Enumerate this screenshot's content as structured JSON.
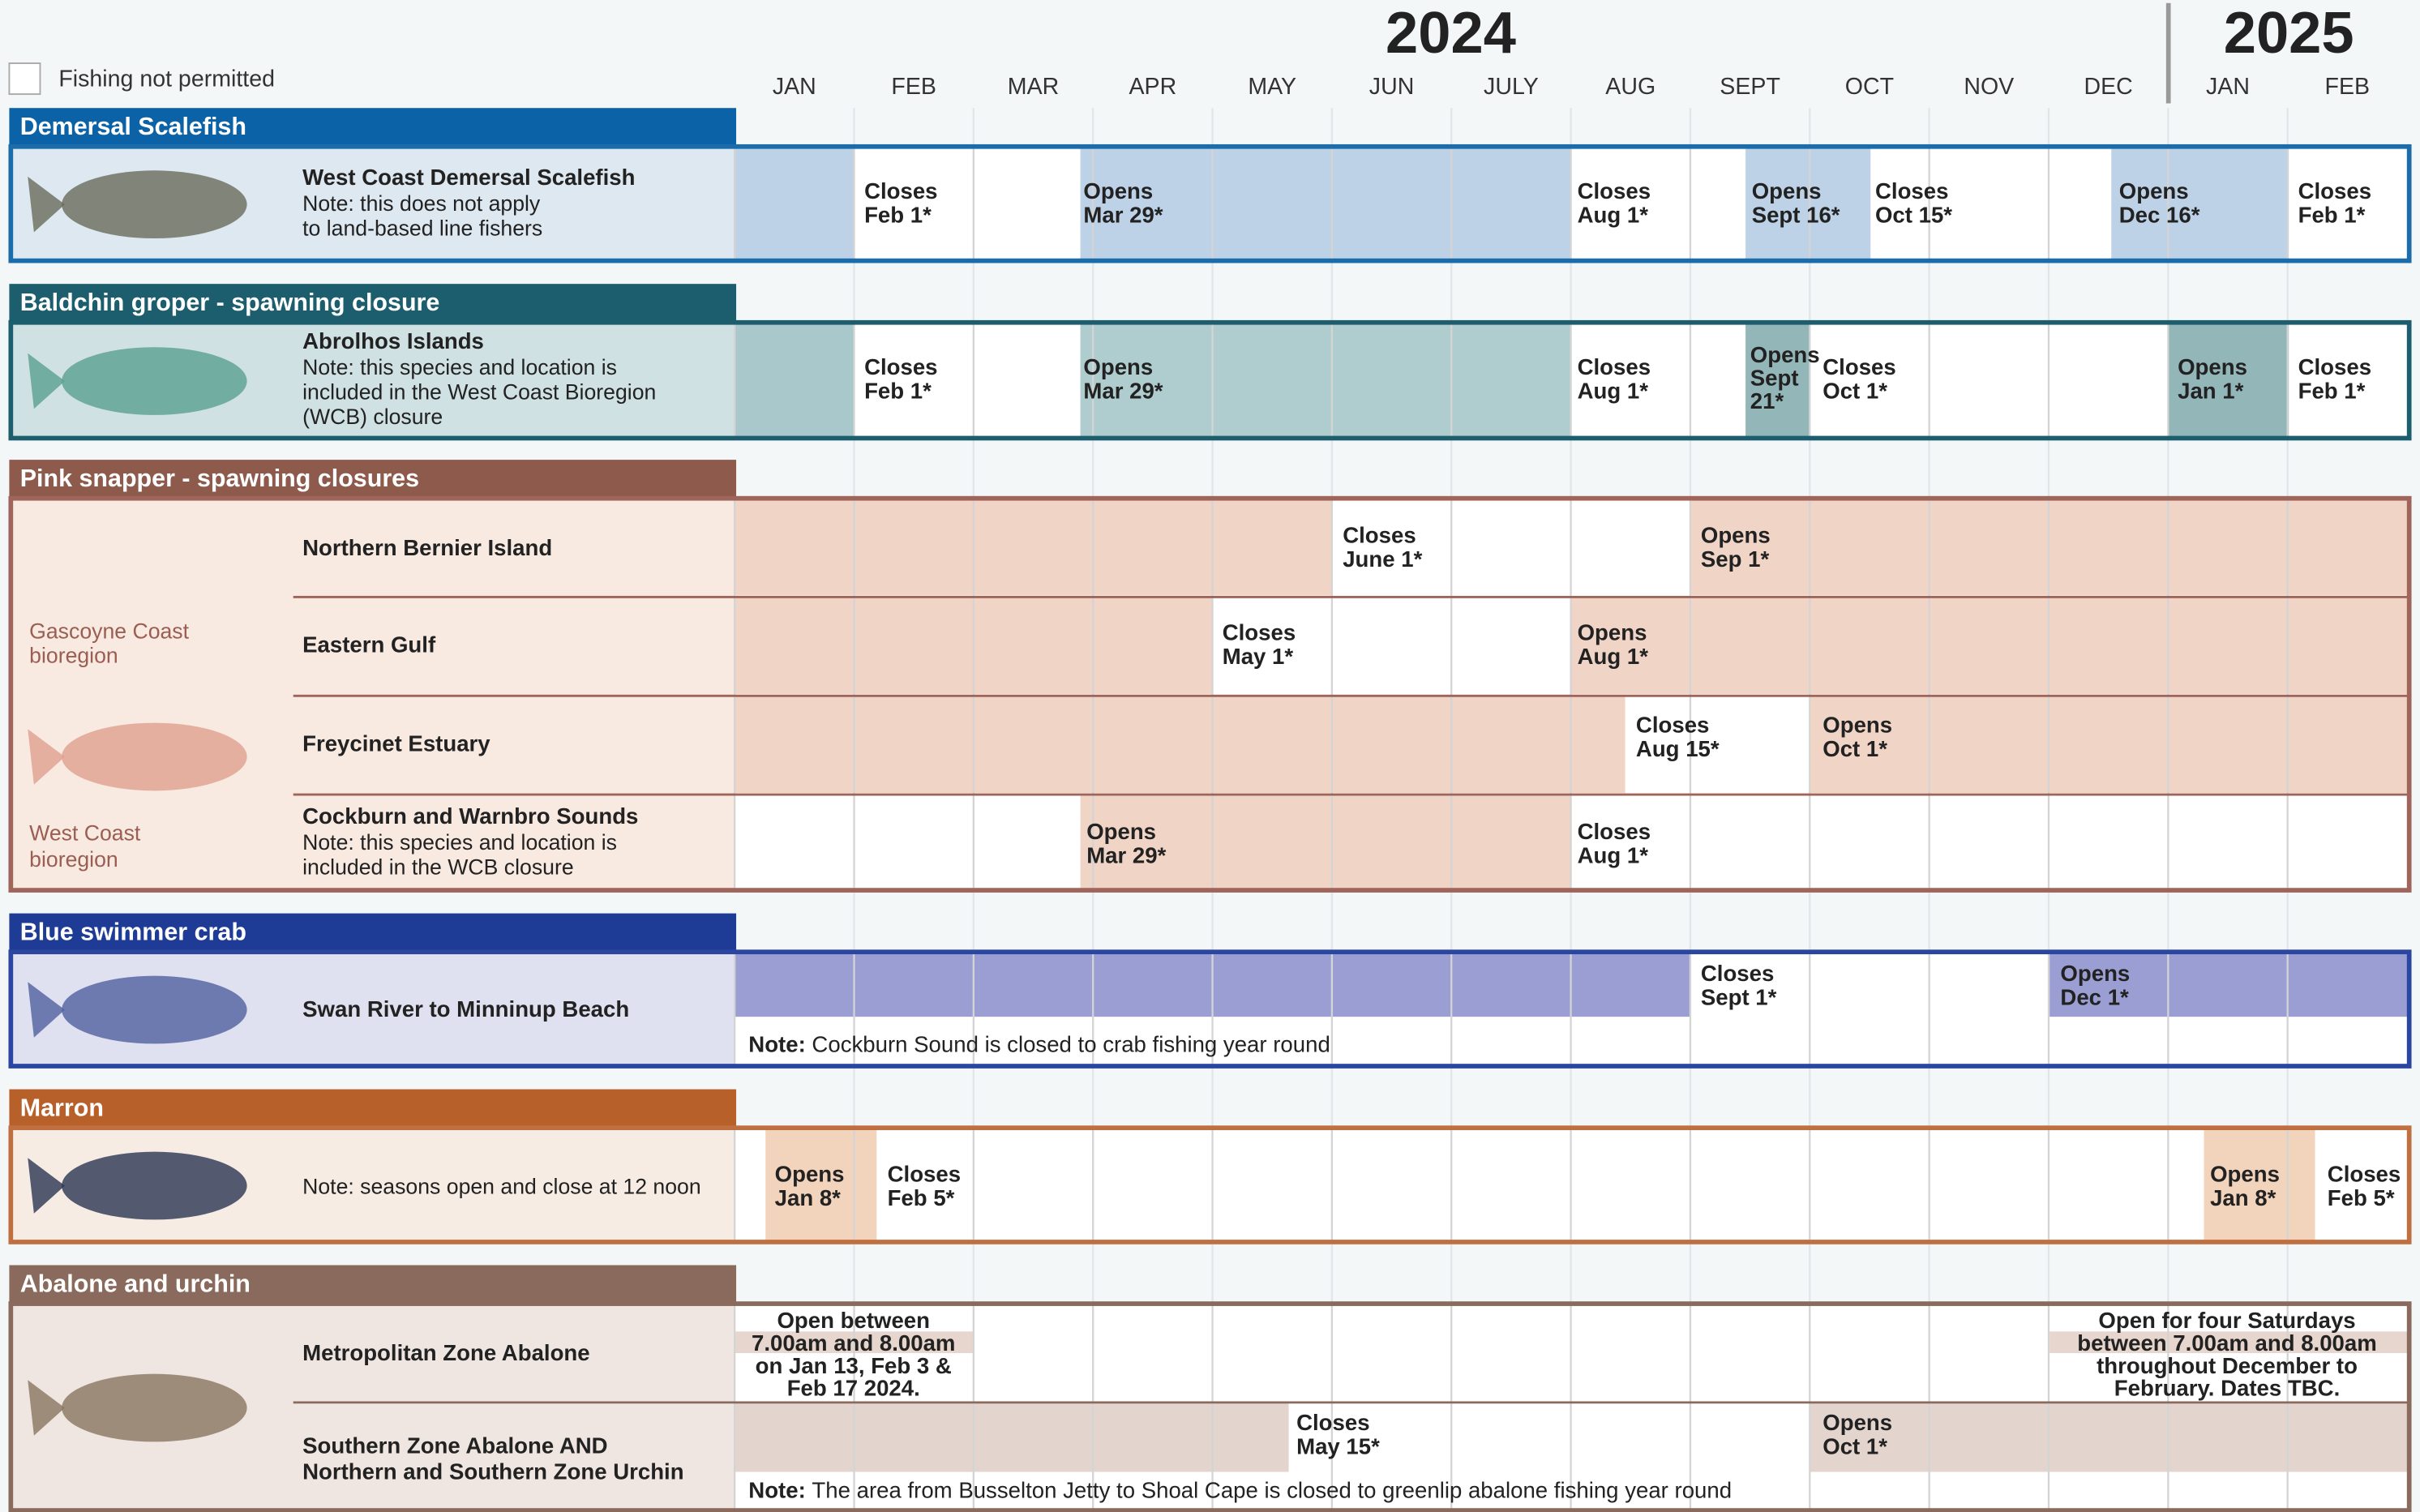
{
  "legend": "Fishing not permitted",
  "years": [
    "2024",
    "2025"
  ],
  "months": [
    "JAN",
    "FEB",
    "MAR",
    "APR",
    "MAY",
    "JUN",
    "JULY",
    "AUG",
    "SEPT",
    "OCT",
    "NOV",
    "DEC",
    "JAN",
    "FEB"
  ],
  "sections": [
    {
      "title": "Demersal Scalefish",
      "rows": [
        {
          "label": [
            "West Coast Demersal Scalefish"
          ],
          "note": [
            "Note: this does not apply",
            "to land-based line fishers"
          ],
          "events": [
            [
              "Closes",
              "Feb 1*"
            ],
            [
              "Opens",
              "Mar 29*"
            ],
            [
              "Closes",
              "Aug 1*"
            ],
            [
              "Opens",
              "Sept 16*"
            ],
            [
              "Closes",
              "Oct 15*"
            ],
            [
              "Opens",
              "Dec 16*"
            ],
            [
              "Closes",
              "Feb 1*"
            ]
          ]
        }
      ]
    },
    {
      "title": "Baldchin groper - spawning closure",
      "rows": [
        {
          "label": [
            "Abrolhos Islands"
          ],
          "note": [
            "Note: this species and location is",
            "included in the West Coast Bioregion",
            "(WCB) closure"
          ],
          "events": [
            [
              "Closes",
              "Feb 1*"
            ],
            [
              "Opens",
              "Mar 29*"
            ],
            [
              "Closes",
              "Aug 1*"
            ],
            [
              "Opens",
              "Sept",
              "21*"
            ],
            [
              "Closes",
              "Oct 1*"
            ],
            [
              "Opens",
              "Jan 1*"
            ],
            [
              "Closes",
              "Feb 1*"
            ]
          ]
        }
      ]
    },
    {
      "title": "Pink snapper - spawning closures",
      "regions": [
        [
          "Gascoyne Coast",
          "bioregion"
        ],
        [
          "West Coast",
          "bioregion"
        ]
      ],
      "rows": [
        {
          "label": [
            "Northern Bernier Island"
          ],
          "events": [
            [
              "Closes",
              "June 1*"
            ],
            [
              "Opens",
              "Sep 1*"
            ]
          ]
        },
        {
          "label": [
            "Eastern Gulf"
          ],
          "events": [
            [
              "Closes",
              "May 1*"
            ],
            [
              "Opens",
              "Aug 1*"
            ]
          ]
        },
        {
          "label": [
            "Freycinet Estuary"
          ],
          "events": [
            [
              "Closes",
              "Aug 15*"
            ],
            [
              "Opens",
              "Oct 1*"
            ]
          ]
        },
        {
          "label": [
            "Cockburn and Warnbro Sounds"
          ],
          "note": [
            "Note: this species and location is",
            "included in the WCB closure"
          ],
          "events": [
            [
              "Opens",
              "Mar 29*"
            ],
            [
              "Closes",
              "Aug 1*"
            ]
          ]
        }
      ]
    },
    {
      "title": "Blue swimmer crab",
      "rows": [
        {
          "label": [
            "Swan River to Minninup Beach"
          ],
          "events": [
            [
              "Closes",
              "Sept 1*"
            ],
            [
              "Opens",
              "Dec 1*"
            ]
          ]
        }
      ],
      "footnote": {
        "label": "Note:",
        "text": "Cockburn Sound is closed to crab fishing year round"
      }
    },
    {
      "title": "Marron",
      "rows": [
        {
          "note": [
            "Note: seasons open and close at 12 noon"
          ],
          "events": [
            [
              "Opens",
              "Jan 8*"
            ],
            [
              "Closes",
              "Feb 5*"
            ],
            [
              "Opens",
              "Jan 8*"
            ],
            [
              "Closes",
              "Feb 5*"
            ]
          ]
        }
      ]
    },
    {
      "title": "Abalone and urchin",
      "rows": [
        {
          "label": [
            "Metropolitan Zone Abalone"
          ],
          "events": [
            [
              "Open between",
              "7.00am and 8.00am",
              "on Jan 13, Feb 3 &",
              "Feb 17 2024."
            ],
            [
              "Open for four Saturdays",
              "between 7.00am and 8.00am",
              "throughout December to",
              "February. Dates TBC."
            ]
          ]
        },
        {
          "label": [
            "Southern Zone Abalone AND",
            "Northern and Southern Zone Urchin"
          ],
          "events": [
            [
              "Closes",
              "May 15*"
            ],
            [
              "Opens",
              "Oct 1*"
            ]
          ]
        }
      ],
      "footnote": {
        "label": "Note:",
        "text": "The area from Busselton Jetty to Shoal Cape is closed to greenlip abalone fishing year round"
      }
    }
  ]
}
